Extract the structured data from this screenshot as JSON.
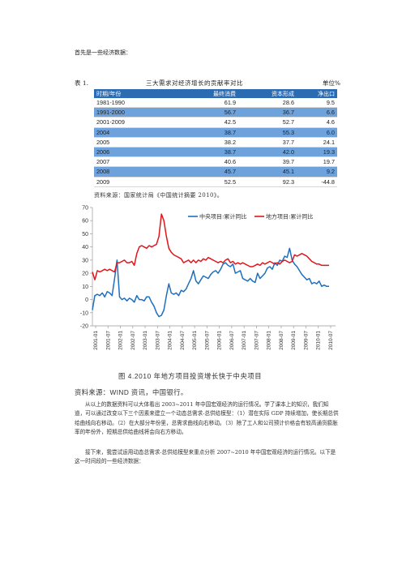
{
  "intro_text": "首先是一些经济数据：",
  "table": {
    "caption_left": "表 1.",
    "caption_title": "三大需求对经济增长的贡献率对比",
    "caption_unit": "单位%",
    "headers": [
      "时期/年份",
      "最终消费",
      "资本形成",
      "净出口"
    ],
    "rows": [
      {
        "period": "1981-1990",
        "consumption": "61.9",
        "capital": "28.6",
        "net_export": "9.5",
        "highlight": false
      },
      {
        "period": "1991-2000",
        "consumption": "56.7",
        "capital": "36.7",
        "net_export": "6.6",
        "highlight": true
      },
      {
        "period": "2001-2009",
        "consumption": "42.5",
        "capital": "52.7",
        "net_export": "4.6",
        "highlight": false
      },
      {
        "period": "2004",
        "consumption": "38.7",
        "capital": "55.3",
        "net_export": "6.0",
        "highlight": true
      },
      {
        "period": "2005",
        "consumption": "38.2",
        "capital": "37.7",
        "net_export": "24.1",
        "highlight": false
      },
      {
        "period": "2006",
        "consumption": "38.7",
        "capital": "42.0",
        "net_export": "19.3",
        "highlight": true
      },
      {
        "period": "2007",
        "consumption": "40.6",
        "capital": "39.7",
        "net_export": "19.7",
        "highlight": false
      },
      {
        "period": "2008",
        "consumption": "45.7",
        "capital": "45.1",
        "net_export": "9.2",
        "highlight": true
      },
      {
        "period": "2009",
        "consumption": "52.5",
        "capital": "92.3",
        "net_export": "-44.8",
        "highlight": false
      }
    ],
    "source": "资料来源：国家统计局《中国统计摘要 2010》。"
  },
  "chart_data": {
    "type": "line",
    "title": "",
    "xlabel": "",
    "ylabel": "",
    "ylim": [
      -20,
      70
    ],
    "yticks": [
      -20,
      -10,
      0,
      10,
      20,
      30,
      40,
      50,
      60,
      70
    ],
    "xticks": [
      "2001-01",
      "2001-07",
      "2002-01",
      "2002-07",
      "2003-01",
      "2003-07",
      "2004-01",
      "2004-07",
      "2005-01",
      "2005-07",
      "2006-01",
      "2006-07",
      "2007-01",
      "2007-07",
      "2008-01",
      "2008-07",
      "2009-01",
      "2009-07",
      "2010-01",
      "2010-07"
    ],
    "legend_position": "top-right",
    "grid": false,
    "series": [
      {
        "name": "中央项目:累计同比",
        "color": "#1f6fbf",
        "values": [
          -8,
          3,
          4,
          3,
          5,
          2,
          6,
          5,
          3,
          16,
          30,
          2,
          0,
          1,
          -1,
          1,
          0,
          -2,
          3,
          0,
          0,
          -1,
          2,
          2,
          -2,
          -5,
          -10,
          -13,
          -12,
          -8,
          3,
          12,
          5,
          4,
          5,
          3,
          7,
          6,
          8,
          12,
          16,
          22,
          14,
          12,
          15,
          18,
          17,
          16,
          19,
          21,
          22,
          20,
          23,
          27,
          28,
          26,
          25,
          27,
          20,
          21,
          22,
          16,
          15,
          14,
          16,
          14,
          13,
          20,
          16,
          18,
          20,
          24,
          25,
          23,
          28,
          26,
          30,
          29,
          33,
          32,
          39,
          30,
          27,
          25,
          22,
          19,
          17,
          15,
          16,
          12,
          13,
          12,
          14,
          10,
          11,
          10,
          10
        ]
      },
      {
        "name": "地方项目:累计同比",
        "color": "#e0151b",
        "values": [
          21,
          15,
          22,
          21,
          22,
          23,
          22,
          23,
          22,
          21,
          28,
          28,
          29,
          30,
          28,
          28,
          29,
          26,
          35,
          40,
          41,
          40,
          39,
          41,
          40,
          41,
          42,
          48,
          65,
          60,
          48,
          39,
          36,
          34,
          33,
          32,
          31,
          28,
          29,
          30,
          28,
          30,
          28,
          30,
          29,
          31,
          30,
          32,
          31,
          30,
          29,
          28,
          29,
          28,
          30,
          31,
          28,
          29,
          27,
          28,
          27,
          28,
          27,
          26,
          25,
          25,
          26,
          27,
          26,
          28,
          27,
          28,
          29,
          28,
          27,
          28,
          27,
          29,
          30,
          29,
          28,
          29,
          34,
          33,
          34,
          35,
          34,
          33,
          31,
          29,
          28,
          27,
          27,
          26,
          26,
          26,
          26
        ]
      }
    ]
  },
  "figure_caption": "图 4.2010 年地方项目投资增长快于中央项目",
  "figure_source": "资料来源：WIND 资讯，中国银行。",
  "paragraph1": "从以上的数据资料可以大体看出 2003~2011 年中国宏观经济的运行情况。学了课本上的知识，我们知道，可以通过改变以下三个因素来建立一个动态总需求-总供给模型：（1）潜在实际 GDP 持续增加，使长期总供给曲线向右移动。（2）在大部分年份里，总需求曲线向右移动。（3）除了工人和公司预计价格会有较高通货膨胀率的年份外，短期总供给曲线将会向右方移动。",
  "paragraph2": "接下来，我尝试运用动态总需求-总供给模型来重点分析 2007~2010 年中国宏观经济的运行情况。以下是这一时间段的一些经济数据："
}
